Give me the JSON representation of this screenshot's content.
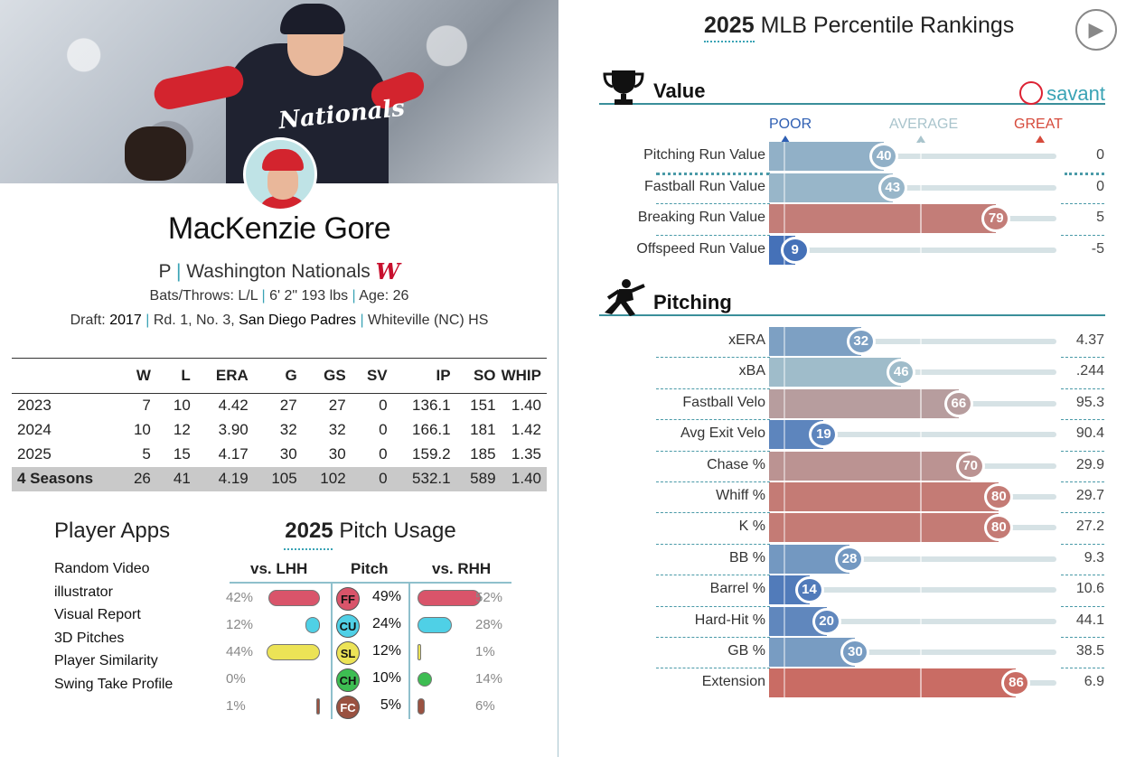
{
  "player": {
    "name": "MacKenzie Gore",
    "position": "P",
    "team": "Washington Nationals",
    "team_logo_glyph": "W",
    "jersey_text": "Nationals",
    "bats_throws_label": "Bats/Throws:",
    "bats_throws": "L/L",
    "height_weight": "6' 2\" 193 lbs",
    "age_label": "Age:",
    "age": "26",
    "draft_label": "Draft:",
    "draft_year": "2017",
    "draft_pick": "Rd. 1, No. 3,",
    "draft_team": "San Diego Padres",
    "school": "Whiteville (NC) HS",
    "separator": "|"
  },
  "stats": {
    "headers": [
      "",
      "W",
      "L",
      "ERA",
      "G",
      "GS",
      "SV",
      "IP",
      "SO",
      "WHIP"
    ],
    "rows": [
      [
        "2023",
        "7",
        "10",
        "4.42",
        "27",
        "27",
        "0",
        "136.1",
        "151",
        "1.40"
      ],
      [
        "2024",
        "10",
        "12",
        "3.90",
        "32",
        "32",
        "0",
        "166.1",
        "181",
        "1.42"
      ],
      [
        "2025",
        "5",
        "15",
        "4.17",
        "30",
        "30",
        "0",
        "159.2",
        "185",
        "1.35"
      ],
      [
        "4 Seasons",
        "26",
        "41",
        "4.19",
        "105",
        "102",
        "0",
        "532.1",
        "589",
        "1.40"
      ]
    ]
  },
  "apps": {
    "title": "Player Apps",
    "items": [
      "Random Video",
      "illustrator",
      "Visual Report",
      "3D Pitches",
      "Player Similarity",
      "Swing Take Profile"
    ]
  },
  "usage": {
    "title_year": "2025",
    "title_text": "Pitch Usage",
    "hdr_lhh": "vs. LHH",
    "hdr_pitch": "Pitch",
    "hdr_rhh": "vs. RHH",
    "pitches": [
      {
        "code": "FF",
        "overall": "49%",
        "lhh": "42%",
        "rhh": "52%",
        "lhh_val": 42,
        "rhh_val": 52,
        "color": "#d9546a"
      },
      {
        "code": "CU",
        "overall": "24%",
        "lhh": "12%",
        "rhh": "28%",
        "lhh_val": 12,
        "rhh_val": 28,
        "color": "#4fd0e6"
      },
      {
        "code": "SL",
        "overall": "12%",
        "lhh": "44%",
        "rhh": "1%",
        "lhh_val": 44,
        "rhh_val": 1,
        "color": "#ece356"
      },
      {
        "code": "CH",
        "overall": "10%",
        "lhh": "0%",
        "rhh": "14%",
        "lhh_val": 0,
        "rhh_val": 14,
        "color": "#3dbd52"
      },
      {
        "code": "FC",
        "overall": "5%",
        "lhh": "1%",
        "rhh": "6%",
        "lhh_val": 1,
        "rhh_val": 6,
        "color": "#9a5241"
      }
    ]
  },
  "rankings": {
    "title_year": "2025",
    "title_text": "MLB Percentile Rankings",
    "play_icon": "play-icon",
    "savant_label": "savant",
    "scale_poor": "POOR",
    "scale_average": "AVERAGE",
    "scale_great": "GREAT",
    "colors": {
      "poor": "#2f5fb3",
      "average": "#a9c4cc",
      "great": "#d64a3b",
      "accent": "#3aa3b5"
    },
    "value": {
      "title": "Value",
      "icon": "trophy-icon",
      "metrics": [
        {
          "label": "Pitching Run Value",
          "pct": 40,
          "value": "0"
        },
        {
          "label": "Fastball Run Value",
          "pct": 43,
          "value": "0"
        },
        {
          "label": "Breaking Run Value",
          "pct": 79,
          "value": "5"
        },
        {
          "label": "Offspeed Run Value",
          "pct": 9,
          "value": "-5"
        }
      ]
    },
    "pitching": {
      "title": "Pitching",
      "icon": "pitcher-icon",
      "metrics": [
        {
          "label": "xERA",
          "pct": 32,
          "value": "4.37"
        },
        {
          "label": "xBA",
          "pct": 46,
          "value": ".244"
        },
        {
          "label": "Fastball Velo",
          "pct": 66,
          "value": "95.3"
        },
        {
          "label": "Avg Exit Velo",
          "pct": 19,
          "value": "90.4"
        },
        {
          "label": "Chase %",
          "pct": 70,
          "value": "29.9"
        },
        {
          "label": "Whiff %",
          "pct": 80,
          "value": "29.7"
        },
        {
          "label": "K %",
          "pct": 80,
          "value": "27.2"
        },
        {
          "label": "BB %",
          "pct": 28,
          "value": "9.3"
        },
        {
          "label": "Barrel %",
          "pct": 14,
          "value": "10.6"
        },
        {
          "label": "Hard-Hit %",
          "pct": 20,
          "value": "44.1"
        },
        {
          "label": "GB %",
          "pct": 30,
          "value": "38.5"
        },
        {
          "label": "Extension",
          "pct": 86,
          "value": "6.9"
        }
      ]
    }
  }
}
